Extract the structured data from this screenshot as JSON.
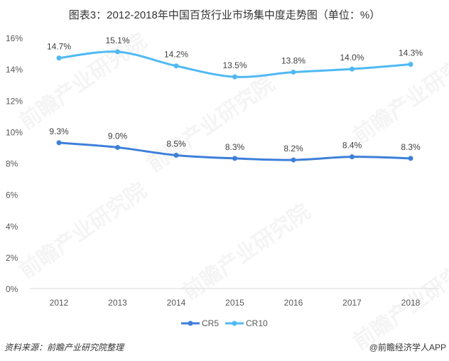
{
  "title": "图表3：2012-2018年中国百货行业市场集中度走势图（单位：%）",
  "source": "资料来源：前瞻产业研究院整理",
  "credit": "@前瞻经济学人APP",
  "watermark": "前瞻产业研究院",
  "chart_data": {
    "type": "line",
    "title": "图表3：2012-2018年中国百货行业市场集中度走势图（单位：%）",
    "categories": [
      "2012",
      "2013",
      "2014",
      "2015",
      "2016",
      "2017",
      "2018"
    ],
    "ylim": [
      0,
      16
    ],
    "yticks": [
      "0%",
      "2%",
      "4%",
      "6%",
      "8%",
      "10%",
      "12%",
      "14%",
      "16%"
    ],
    "grid": false,
    "legend": "bottom",
    "series": [
      {
        "name": "CR5",
        "color": "#3d7fd9",
        "values": [
          9.3,
          9.0,
          8.5,
          8.3,
          8.2,
          8.4,
          8.3
        ],
        "labels": [
          "9.3%",
          "9.0%",
          "8.5%",
          "8.3%",
          "8.2%",
          "8.4%",
          "8.3%"
        ]
      },
      {
        "name": "CR10",
        "color": "#4fb9f4",
        "values": [
          14.7,
          15.1,
          14.2,
          13.5,
          13.8,
          14.0,
          14.3
        ],
        "labels": [
          "14.7%",
          "15.1%",
          "14.2%",
          "13.5%",
          "13.8%",
          "14.0%",
          "14.3%"
        ]
      }
    ]
  }
}
